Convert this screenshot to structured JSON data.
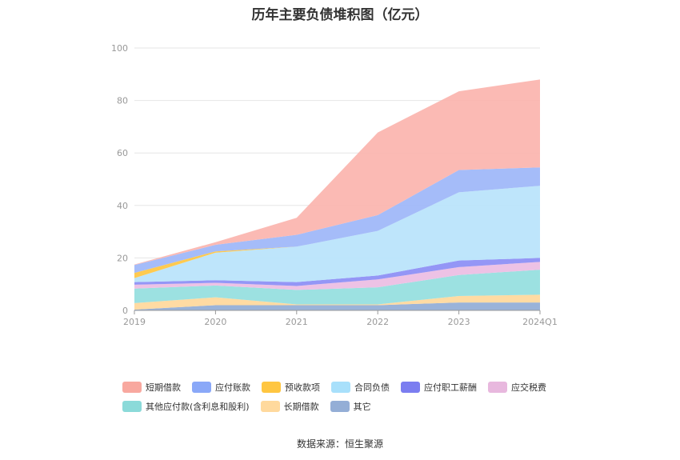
{
  "title": "历年主要负债堆积图（亿元）",
  "source": "数据来源：恒生聚源",
  "chart_data": {
    "type": "area",
    "stacked": true,
    "categories": [
      "2019",
      "2020",
      "2021",
      "2022",
      "2023",
      "2024Q1"
    ],
    "ylim": [
      0,
      100
    ],
    "yticks": [
      0,
      20,
      40,
      60,
      80,
      100
    ],
    "grid": true,
    "legend_position": "bottom",
    "series": [
      {
        "name": "其它",
        "color": "#91acd6",
        "values": [
          0.3,
          2.0,
          2.0,
          2.0,
          3.0,
          3.0
        ]
      },
      {
        "name": "长期借款",
        "color": "#ffd89b",
        "values": [
          2.5,
          3.0,
          0.3,
          0.3,
          2.5,
          3.0
        ]
      },
      {
        "name": "其他应付款(含利息和股利)",
        "color": "#94dede",
        "values": [
          5.5,
          4.5,
          5.5,
          6.5,
          8.0,
          9.5
        ]
      },
      {
        "name": "应交税费",
        "color": "#ecbde3",
        "values": [
          1.5,
          1.0,
          1.5,
          3.0,
          3.0,
          3.0
        ]
      },
      {
        "name": "应付职工薪酬",
        "color": "#8b8df5",
        "values": [
          1.0,
          1.0,
          1.5,
          1.5,
          2.5,
          1.5
        ]
      },
      {
        "name": "合同负债",
        "color": "#b8e3fb",
        "values": [
          1.5,
          10.5,
          13.5,
          17.0,
          26.0,
          27.5
        ]
      },
      {
        "name": "预收款项",
        "color": "#ffc641",
        "values": [
          2.0,
          0.5,
          0.0,
          0.0,
          0.0,
          0.0
        ]
      },
      {
        "name": "应付账款",
        "color": "#9db6f8",
        "values": [
          3.0,
          2.5,
          4.5,
          6.0,
          8.5,
          7.0
        ]
      },
      {
        "name": "短期借款",
        "color": "#fbb4ae",
        "values": [
          0.2,
          1.0,
          6.5,
          31.5,
          30.0,
          33.5
        ]
      }
    ]
  },
  "legend": [
    {
      "name": "短期借款",
      "color": "#f8a89f"
    },
    {
      "name": "应付账款",
      "color": "#8aa8f8"
    },
    {
      "name": "预收款项",
      "color": "#ffc641"
    },
    {
      "name": "合同负债",
      "color": "#a8e0fb"
    },
    {
      "name": "应付职工薪酬",
      "color": "#7b7df0"
    },
    {
      "name": "应交税费",
      "color": "#e8b8de"
    },
    {
      "name": "其他应付款(含利息和股利)",
      "color": "#8bdad9"
    },
    {
      "name": "长期借款",
      "color": "#ffd99d"
    },
    {
      "name": "其它",
      "color": "#94aed6"
    }
  ]
}
